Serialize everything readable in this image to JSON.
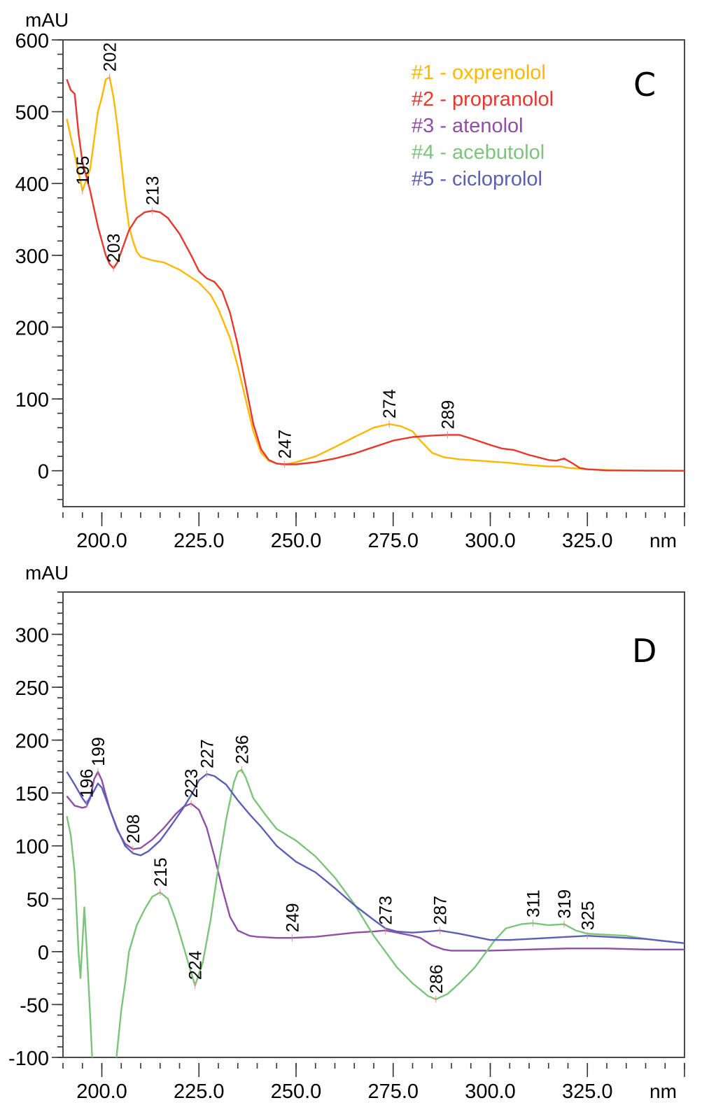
{
  "chart_data": [
    {
      "type": "line",
      "panel": "C",
      "title": "",
      "xlabel": "nm",
      "ylabel": "mAU",
      "xlim": [
        190,
        350
      ],
      "ylim": [
        -50,
        600
      ],
      "x_ticks": [
        200,
        225,
        250,
        275,
        300,
        325
      ],
      "x_tick_labels": [
        "200.0",
        "225.0",
        "250.0",
        "275.0",
        "300.0",
        "325.0"
      ],
      "x_minor_step": 5,
      "y_ticks": [
        0,
        100,
        200,
        300,
        400,
        500,
        600
      ],
      "y_tick_labels": [
        "0",
        "100",
        "200",
        "300",
        "400",
        "500",
        "600"
      ],
      "y_minor_step": 20,
      "grid": false,
      "legend": {
        "placement": "top-right",
        "entries": [
          {
            "text": "#1 - oxprenolol",
            "color": "#FFB700"
          },
          {
            "text": "#2 - propranolol",
            "color": "#E8382E"
          },
          {
            "text": "#3 - atenolol",
            "color": "#8E4FA6"
          },
          {
            "text": "#4 - acebutolol",
            "color": "#7CC47C"
          },
          {
            "text": "#5 - cicloprolol",
            "color": "#5B5FB5"
          }
        ]
      },
      "series": [
        {
          "name": "#1 - oxprenolol",
          "color": "#FFB700",
          "x": [
            191,
            193,
            195,
            197,
            199,
            200,
            201,
            202,
            203,
            204,
            205,
            206,
            207,
            208,
            209,
            210,
            213,
            216,
            220,
            225,
            228,
            230,
            233,
            235,
            237,
            239,
            241,
            243,
            245,
            247,
            250,
            255,
            260,
            265,
            270,
            274,
            277,
            280,
            282,
            285,
            288,
            292,
            300,
            305,
            310,
            315,
            318,
            320,
            325,
            330,
            340,
            350
          ],
          "y": [
            490,
            440,
            390,
            420,
            500,
            520,
            545,
            548,
            520,
            480,
            430,
            380,
            340,
            320,
            305,
            298,
            293,
            290,
            280,
            262,
            245,
            225,
            185,
            145,
            100,
            55,
            25,
            14,
            10,
            9,
            12,
            20,
            33,
            47,
            60,
            65,
            62,
            55,
            42,
            25,
            19,
            16,
            13,
            11,
            8,
            6,
            6,
            4,
            2,
            1,
            0,
            0
          ]
        },
        {
          "name": "#2 - propranolol",
          "color": "#E8382E",
          "x": [
            191,
            192,
            193,
            194,
            195,
            197,
            199,
            201,
            202,
            203,
            204,
            205,
            207,
            209,
            211,
            213,
            215,
            217,
            220,
            223,
            225,
            227,
            229,
            231,
            233,
            235,
            237,
            239,
            241,
            243,
            245,
            247,
            250,
            255,
            260,
            265,
            270,
            275,
            280,
            285,
            289,
            292,
            295,
            300,
            303,
            306,
            310,
            315,
            317,
            319,
            321,
            323,
            325,
            330,
            350
          ],
          "y": [
            545,
            530,
            525,
            470,
            430,
            390,
            340,
            300,
            288,
            282,
            290,
            305,
            335,
            352,
            360,
            362,
            360,
            352,
            330,
            300,
            278,
            268,
            263,
            250,
            220,
            175,
            120,
            65,
            30,
            15,
            10,
            9,
            9,
            12,
            17,
            24,
            33,
            42,
            47,
            49,
            50,
            50,
            45,
            36,
            31,
            29,
            22,
            15,
            14,
            17,
            11,
            4,
            2,
            0.5,
            0
          ]
        }
      ],
      "annotations": [
        {
          "text": "195",
          "x": 195,
          "y": 390,
          "series": "#1 - oxprenolol"
        },
        {
          "text": "202",
          "x": 202,
          "y": 548,
          "series": "#1 - oxprenolol"
        },
        {
          "text": "203",
          "x": 203,
          "y": 282,
          "series": "#2 - propranolol"
        },
        {
          "text": "213",
          "x": 213,
          "y": 362,
          "series": "#2 - propranolol"
        },
        {
          "text": "247",
          "x": 247,
          "y": 9,
          "series": "#2 - propranolol"
        },
        {
          "text": "274",
          "x": 274,
          "y": 65,
          "series": "#1 - oxprenolol"
        },
        {
          "text": "289",
          "x": 289,
          "y": 50,
          "series": "#2 - propranolol"
        }
      ]
    },
    {
      "type": "line",
      "panel": "D",
      "title": "",
      "xlabel": "nm",
      "ylabel": "mAU",
      "xlim": [
        190,
        350
      ],
      "ylim": [
        -100,
        340
      ],
      "x_ticks": [
        200,
        225,
        250,
        275,
        300,
        325
      ],
      "x_tick_labels": [
        "200.0",
        "225.0",
        "250.0",
        "275.0",
        "300.0",
        "325.0"
      ],
      "x_minor_step": 5,
      "y_ticks": [
        -100,
        -50,
        0,
        50,
        100,
        150,
        200,
        250,
        300
      ],
      "y_tick_labels": [
        "-100",
        "-50",
        "0",
        "50",
        "100",
        "150",
        "200",
        "250",
        "300"
      ],
      "y_minor_step": 10,
      "grid": false,
      "series": [
        {
          "name": "#3 - atenolol",
          "color": "#8E4FA6",
          "x": [
            191,
            193,
            195,
            196,
            197,
            198,
            199,
            200,
            202,
            204,
            206,
            208,
            210,
            213,
            216,
            219,
            221,
            223,
            225,
            227,
            229,
            231,
            233,
            235,
            238,
            240,
            245,
            249,
            255,
            260,
            265,
            270,
            273,
            276,
            280,
            282,
            285,
            288,
            290,
            295,
            300,
            310,
            320,
            330,
            340,
            350
          ],
          "y": [
            147,
            138,
            136,
            137,
            145,
            163,
            170,
            162,
            135,
            115,
            102,
            97,
            98,
            106,
            117,
            130,
            137,
            140,
            134,
            117,
            90,
            60,
            33,
            20,
            15,
            14,
            13,
            13,
            14,
            16,
            18,
            19,
            20,
            18,
            15,
            13,
            6,
            2,
            1,
            1,
            1,
            2,
            3,
            3,
            2,
            2
          ]
        },
        {
          "name": "#4 - acebutolol",
          "color": "#7CC47C",
          "x": [
            191,
            192,
            193,
            194,
            194.5,
            195.5,
            196,
            197,
            197.5,
            198,
            203.5,
            205,
            206,
            207,
            209,
            211,
            213,
            215,
            217,
            219,
            221,
            223,
            224,
            226,
            228,
            230,
            232,
            234,
            235,
            236,
            237,
            239,
            242,
            245,
            250,
            255,
            260,
            265,
            270,
            273,
            276,
            280,
            284,
            286,
            289,
            292,
            296,
            299,
            301,
            304,
            308,
            311,
            315,
            319,
            322,
            325,
            330,
            335,
            340,
            345,
            350
          ],
          "y": [
            128,
            110,
            75,
            0,
            -25,
            42,
            10,
            -60,
            -100,
            -110,
            -110,
            -55,
            -30,
            0,
            25,
            40,
            52,
            56,
            50,
            30,
            5,
            -20,
            -32,
            -10,
            30,
            80,
            125,
            160,
            170,
            172,
            165,
            145,
            130,
            116,
            105,
            90,
            70,
            45,
            15,
            0,
            -15,
            -30,
            -42,
            -45,
            -40,
            -30,
            -15,
            0,
            10,
            22,
            26,
            27,
            25,
            26,
            20,
            17,
            16,
            15,
            12,
            10,
            8
          ]
        },
        {
          "name": "#5 - cicloprolol",
          "color": "#5B5FB5",
          "x": [
            191,
            193,
            195,
            196,
            198,
            199,
            200,
            202,
            204,
            206,
            208,
            210,
            212,
            215,
            218,
            221,
            223,
            225,
            227,
            229,
            232,
            235,
            238,
            241,
            245,
            250,
            255,
            260,
            265,
            270,
            273,
            276,
            280,
            284,
            287,
            292,
            296,
            300,
            305,
            310,
            315,
            320,
            325,
            330,
            335,
            340,
            345,
            350
          ],
          "y": [
            170,
            158,
            145,
            140,
            152,
            159,
            155,
            135,
            116,
            100,
            93,
            91,
            95,
            105,
            120,
            136,
            148,
            162,
            168,
            166,
            158,
            143,
            130,
            118,
            100,
            85,
            75,
            60,
            44,
            30,
            22,
            19,
            18,
            19,
            20,
            17,
            14,
            11,
            11,
            12,
            13,
            14,
            15,
            14,
            13,
            12,
            10,
            8
          ]
        }
      ],
      "annotations": [
        {
          "text": "196",
          "x": 196,
          "y": 140,
          "series": "#5 - cicloprolol"
        },
        {
          "text": "199",
          "x": 199,
          "y": 170,
          "series": "#3 - atenolol"
        },
        {
          "text": "208",
          "x": 208,
          "y": 97,
          "series": "#3 - atenolol"
        },
        {
          "text": "215",
          "x": 215,
          "y": 56,
          "series": "#4 - acebutolol"
        },
        {
          "text": "223",
          "x": 223,
          "y": 140,
          "series": "#3 - atenolol"
        },
        {
          "text": "224",
          "x": 224,
          "y": -32,
          "series": "#4 - acebutolol"
        },
        {
          "text": "227",
          "x": 227,
          "y": 168,
          "series": "#5 - cicloprolol"
        },
        {
          "text": "236",
          "x": 236,
          "y": 172,
          "series": "#4 - acebutolol"
        },
        {
          "text": "249",
          "x": 249,
          "y": 13,
          "series": "#3 - atenolol"
        },
        {
          "text": "273",
          "x": 273,
          "y": 20,
          "series": "#3 - atenolol"
        },
        {
          "text": "286",
          "x": 286,
          "y": -45,
          "series": "#4 - acebutolol"
        },
        {
          "text": "287",
          "x": 287,
          "y": 20,
          "series": "#5 - cicloprolol"
        },
        {
          "text": "311",
          "x": 311,
          "y": 27,
          "series": "#4 - acebutolol"
        },
        {
          "text": "319",
          "x": 319,
          "y": 26,
          "series": "#4 - acebutolol"
        },
        {
          "text": "325",
          "x": 325,
          "y": 15,
          "series": "#5 - cicloprolol"
        }
      ]
    }
  ]
}
